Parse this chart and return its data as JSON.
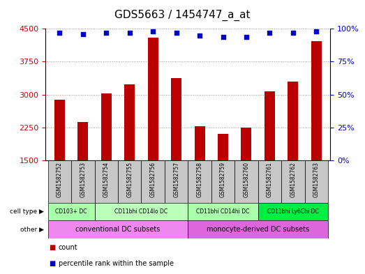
{
  "title": "GDS5663 / 1454747_a_at",
  "samples": [
    "GSM1582752",
    "GSM1582753",
    "GSM1582754",
    "GSM1582755",
    "GSM1582756",
    "GSM1582757",
    "GSM1582758",
    "GSM1582759",
    "GSM1582760",
    "GSM1582761",
    "GSM1582762",
    "GSM1582763"
  ],
  "counts": [
    2880,
    2370,
    3020,
    3230,
    4290,
    3380,
    2270,
    2100,
    2250,
    3080,
    3290,
    4220
  ],
  "percentiles": [
    97,
    96,
    97,
    97,
    98,
    97,
    95,
    94,
    94,
    97,
    97,
    98
  ],
  "ylim_left": [
    1500,
    4500
  ],
  "ylim_right": [
    0,
    100
  ],
  "yticks_left": [
    1500,
    2250,
    3000,
    3750,
    4500
  ],
  "yticks_right": [
    0,
    25,
    50,
    75,
    100
  ],
  "groups_cell": [
    {
      "label": "CD103+ DC",
      "s": 0,
      "e": 1,
      "color": "#aaffaa"
    },
    {
      "label": "CD11bhi CD14lo DC",
      "s": 2,
      "e": 5,
      "color": "#bbffbb"
    },
    {
      "label": "CD11bhi CD14hi DC",
      "s": 6,
      "e": 8,
      "color": "#aaffaa"
    },
    {
      "label": "CD11bhi Ly6Chi DC",
      "s": 9,
      "e": 11,
      "color": "#00ee44"
    }
  ],
  "groups_other": [
    {
      "label": "conventional DC subsets",
      "s": 0,
      "e": 5,
      "color": "#ee88ee"
    },
    {
      "label": "monocyte-derived DC subsets",
      "s": 6,
      "e": 11,
      "color": "#dd66dd"
    }
  ],
  "bar_color": "#bb0000",
  "dot_color": "#0000cc",
  "grid_color": "#999999",
  "sample_box_color": "#c8c8c8",
  "label_color_left": "#cc0000",
  "label_color_right": "#0000cc",
  "tick_fontsize": 8,
  "title_fontsize": 11
}
